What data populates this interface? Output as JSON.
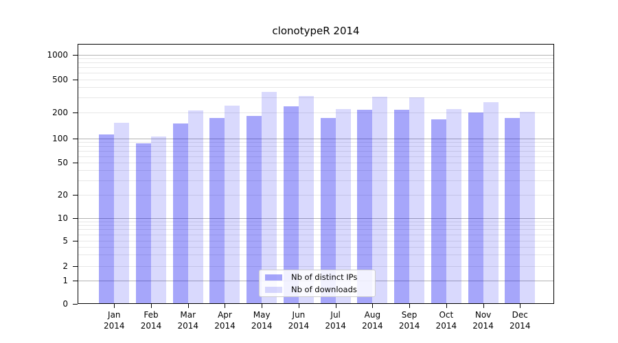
{
  "figure": {
    "title": "clonotypeR 2014",
    "background_color": "#ffffff"
  },
  "chart_data": {
    "type": "bar",
    "title": "clonotypeR 2014",
    "xlabel": "",
    "ylabel": "",
    "yscale": "symlog",
    "ylim": [
      0,
      1340
    ],
    "yticks": [
      0,
      1,
      2,
      5,
      10,
      20,
      50,
      100,
      200,
      500,
      1000
    ],
    "grid": true,
    "grid_colors": {
      "major": "#b2b2b2",
      "minor": "#e7e7e7"
    },
    "legend_position": "lower center",
    "categories": [
      "Jan 2014",
      "Feb 2014",
      "Mar 2014",
      "Apr 2014",
      "May 2014",
      "Jun 2014",
      "Jul 2014",
      "Aug 2014",
      "Sep 2014",
      "Oct 2014",
      "Nov 2014",
      "Dec 2014"
    ],
    "series": [
      {
        "name": "Nb of distinct IPs",
        "color_hex": "#a6a6f7",
        "fill": "rgba(0,0,240,0.35)",
        "values": [
          110,
          86,
          147,
          170,
          180,
          235,
          170,
          213,
          212,
          165,
          198,
          170
        ]
      },
      {
        "name": "Nb of downloads",
        "color_hex": "#d9d9fb",
        "fill": "rgba(0,0,240,0.15)",
        "values": [
          150,
          105,
          210,
          240,
          350,
          315,
          220,
          310,
          300,
          216,
          266,
          203
        ]
      }
    ]
  }
}
